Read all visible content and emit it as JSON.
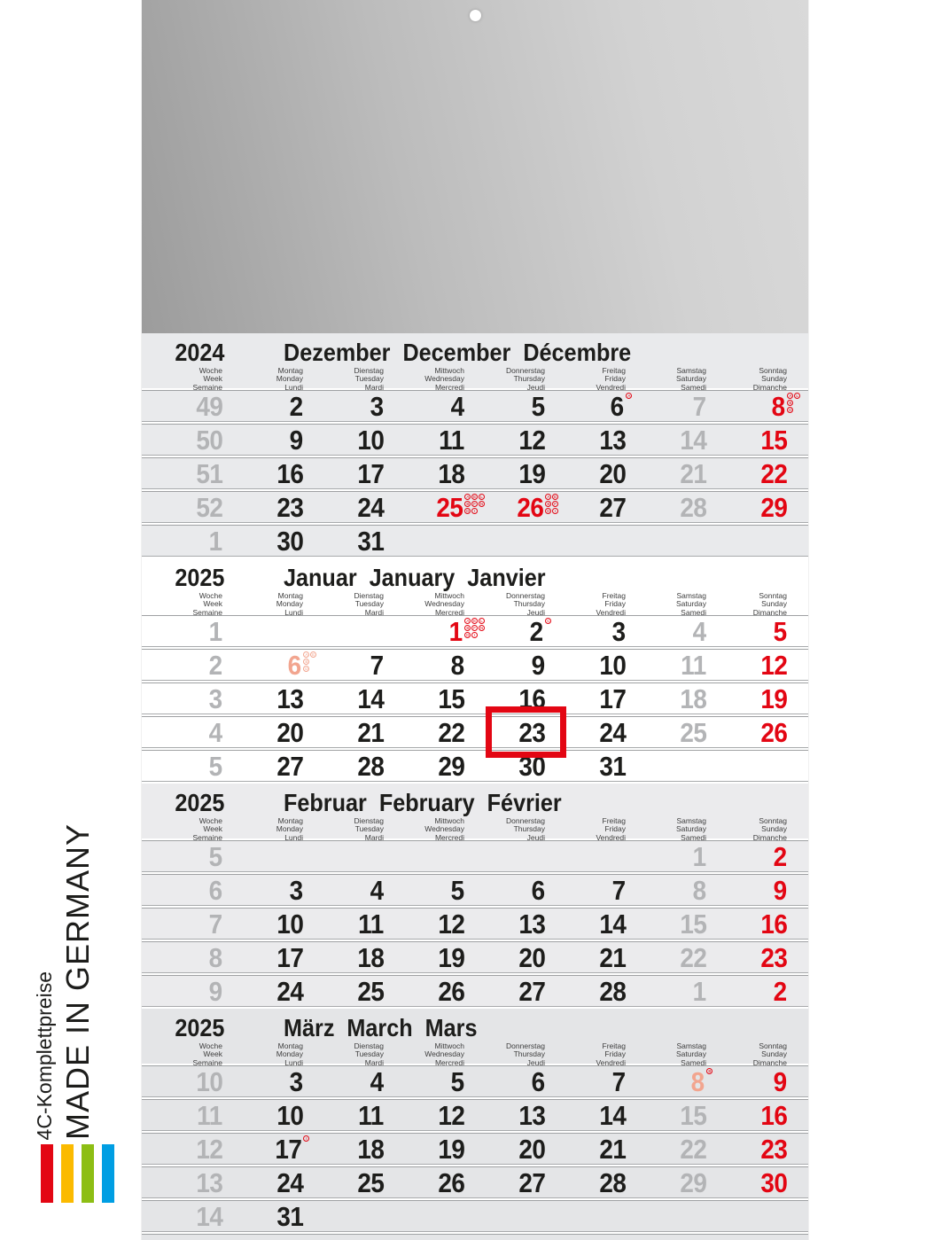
{
  "branding": {
    "tagline": "4C-Komplettpreise",
    "made_in": "MADE IN GERMANY",
    "bars": [
      "#e30613",
      "#fbba00",
      "#8dbe14",
      "#009ee3"
    ]
  },
  "colors": {
    "red": "#e30613",
    "salmon": "#f2a58f",
    "gray_day": "#b3b4b6",
    "black_day": "#1d1d1b"
  },
  "weekday_header": {
    "week": [
      "Woche",
      "Week",
      "Semaine"
    ],
    "days": [
      [
        "Montag",
        "Monday",
        "Lundi"
      ],
      [
        "Dienstag",
        "Tuesday",
        "Mardi"
      ],
      [
        "Mittwoch",
        "Wednesday",
        "Mercredi"
      ],
      [
        "Donnerstag",
        "Thursday",
        "Jeudi"
      ],
      [
        "Freitag",
        "Friday",
        "Vendredi"
      ],
      [
        "Samstag",
        "Saturday",
        "Samedi"
      ],
      [
        "Sonntag",
        "Sunday",
        "Dimanche"
      ]
    ]
  },
  "months": [
    {
      "year": "2024",
      "title": "Dezember  December  Décembre",
      "band": "#e9eaec",
      "weeks": [
        {
          "num": "49",
          "days": [
            {
              "n": "2",
              "c": "k"
            },
            {
              "n": "3",
              "c": "k"
            },
            {
              "n": "4",
              "c": "k"
            },
            {
              "n": "5",
              "c": "k"
            },
            {
              "n": "6",
              "c": "k",
              "m": [
                "A"
              ]
            },
            {
              "n": "7",
              "c": "g"
            },
            {
              "n": "8",
              "c": "r",
              "m": [
                "A",
                "B",
                "D",
                "L"
              ]
            }
          ]
        },
        {
          "num": "50",
          "days": [
            {
              "n": "9",
              "c": "k"
            },
            {
              "n": "10",
              "c": "k"
            },
            {
              "n": "11",
              "c": "k"
            },
            {
              "n": "12",
              "c": "k"
            },
            {
              "n": "13",
              "c": "k"
            },
            {
              "n": "14",
              "c": "g"
            },
            {
              "n": "15",
              "c": "r"
            }
          ]
        },
        {
          "num": "51",
          "days": [
            {
              "n": "16",
              "c": "k"
            },
            {
              "n": "17",
              "c": "k"
            },
            {
              "n": "18",
              "c": "k"
            },
            {
              "n": "19",
              "c": "k"
            },
            {
              "n": "20",
              "c": "k"
            },
            {
              "n": "21",
              "c": "g"
            },
            {
              "n": "22",
              "c": "r"
            }
          ]
        },
        {
          "num": "52",
          "days": [
            {
              "n": "23",
              "c": "k"
            },
            {
              "n": "24",
              "c": "k"
            },
            {
              "n": "25",
              "c": "r",
              "m": [
                "A",
                "B",
                "D",
                "E",
                "F",
                "I",
                "L",
                "N"
              ]
            },
            {
              "n": "26",
              "c": "r",
              "m": [
                "A",
                "B",
                "D",
                "E",
                "F",
                "I"
              ]
            },
            {
              "n": "27",
              "c": "k"
            },
            {
              "n": "28",
              "c": "g"
            },
            {
              "n": "29",
              "c": "r"
            }
          ]
        },
        {
          "num": "1",
          "days": [
            {
              "n": "30",
              "c": "k"
            },
            {
              "n": "31",
              "c": "k"
            },
            null,
            null,
            null,
            null,
            null
          ]
        }
      ]
    },
    {
      "year": "2025",
      "title": "Januar  January  Janvier",
      "band": "#ffffff",
      "weeks": [
        {
          "num": "1",
          "days": [
            null,
            null,
            {
              "n": "1",
              "c": "r",
              "m": [
                "A",
                "B",
                "D",
                "E",
                "F",
                "I",
                "L",
                "N"
              ]
            },
            {
              "n": "2",
              "c": "k",
              "m": [
                "C"
              ]
            },
            {
              "n": "3",
              "c": "k"
            },
            {
              "n": "4",
              "c": "g"
            },
            {
              "n": "5",
              "c": "r"
            }
          ]
        },
        {
          "num": "2",
          "days": [
            {
              "n": "6",
              "c": "s",
              "m": [
                "A",
                "B",
                "D",
                "E"
              ],
              "mc": "s"
            },
            {
              "n": "7",
              "c": "k"
            },
            {
              "n": "8",
              "c": "k"
            },
            {
              "n": "9",
              "c": "k"
            },
            {
              "n": "10",
              "c": "k"
            },
            {
              "n": "11",
              "c": "g"
            },
            {
              "n": "12",
              "c": "r"
            }
          ]
        },
        {
          "num": "3",
          "days": [
            {
              "n": "13",
              "c": "k"
            },
            {
              "n": "14",
              "c": "k"
            },
            {
              "n": "15",
              "c": "k"
            },
            {
              "n": "16",
              "c": "k"
            },
            {
              "n": "17",
              "c": "k"
            },
            {
              "n": "18",
              "c": "g"
            },
            {
              "n": "19",
              "c": "r"
            }
          ]
        },
        {
          "num": "4",
          "days": [
            {
              "n": "20",
              "c": "k"
            },
            {
              "n": "21",
              "c": "k"
            },
            {
              "n": "22",
              "c": "k"
            },
            {
              "n": "23",
              "c": "k",
              "sel": true
            },
            {
              "n": "24",
              "c": "k"
            },
            {
              "n": "25",
              "c": "g"
            },
            {
              "n": "26",
              "c": "r"
            }
          ]
        },
        {
          "num": "5",
          "days": [
            {
              "n": "27",
              "c": "k"
            },
            {
              "n": "28",
              "c": "k"
            },
            {
              "n": "29",
              "c": "k"
            },
            {
              "n": "30",
              "c": "k"
            },
            {
              "n": "31",
              "c": "k"
            },
            null,
            null
          ]
        }
      ]
    },
    {
      "year": "2025",
      "title": "Februar  February  Février",
      "band": "#ebebed",
      "weeks": [
        {
          "num": "5",
          "days": [
            null,
            null,
            null,
            null,
            null,
            {
              "n": "1",
              "c": "g"
            },
            {
              "n": "2",
              "c": "r"
            }
          ]
        },
        {
          "num": "6",
          "days": [
            {
              "n": "3",
              "c": "k"
            },
            {
              "n": "4",
              "c": "k"
            },
            {
              "n": "5",
              "c": "k"
            },
            {
              "n": "6",
              "c": "k"
            },
            {
              "n": "7",
              "c": "k"
            },
            {
              "n": "8",
              "c": "g"
            },
            {
              "n": "9",
              "c": "r"
            }
          ]
        },
        {
          "num": "7",
          "days": [
            {
              "n": "10",
              "c": "k"
            },
            {
              "n": "11",
              "c": "k"
            },
            {
              "n": "12",
              "c": "k"
            },
            {
              "n": "13",
              "c": "k"
            },
            {
              "n": "14",
              "c": "k"
            },
            {
              "n": "15",
              "c": "g"
            },
            {
              "n": "16",
              "c": "r"
            }
          ]
        },
        {
          "num": "8",
          "days": [
            {
              "n": "17",
              "c": "k"
            },
            {
              "n": "18",
              "c": "k"
            },
            {
              "n": "19",
              "c": "k"
            },
            {
              "n": "20",
              "c": "k"
            },
            {
              "n": "21",
              "c": "k"
            },
            {
              "n": "22",
              "c": "g"
            },
            {
              "n": "23",
              "c": "r"
            }
          ]
        },
        {
          "num": "9",
          "days": [
            {
              "n": "24",
              "c": "k"
            },
            {
              "n": "25",
              "c": "k"
            },
            {
              "n": "26",
              "c": "k"
            },
            {
              "n": "27",
              "c": "k"
            },
            {
              "n": "28",
              "c": "k"
            },
            {
              "n": "1",
              "c": "g"
            },
            {
              "n": "2",
              "c": "r"
            }
          ]
        }
      ]
    },
    {
      "year": "2025",
      "title": "März  March  Mars",
      "band": "#e4e5e7",
      "weeks": [
        {
          "num": "10",
          "days": [
            {
              "n": "3",
              "c": "k"
            },
            {
              "n": "4",
              "c": "k"
            },
            {
              "n": "5",
              "c": "k"
            },
            {
              "n": "6",
              "c": "k"
            },
            {
              "n": "7",
              "c": "k"
            },
            {
              "n": "8",
              "c": "s",
              "m": [
                "B"
              ]
            },
            {
              "n": "9",
              "c": "r"
            }
          ]
        },
        {
          "num": "11",
          "days": [
            {
              "n": "10",
              "c": "k"
            },
            {
              "n": "11",
              "c": "k"
            },
            {
              "n": "12",
              "c": "k"
            },
            {
              "n": "13",
              "c": "k"
            },
            {
              "n": "14",
              "c": "k"
            },
            {
              "n": "15",
              "c": "g"
            },
            {
              "n": "16",
              "c": "r"
            }
          ]
        },
        {
          "num": "12",
          "days": [
            {
              "n": "17",
              "c": "k",
              "m": [
                "I"
              ]
            },
            {
              "n": "18",
              "c": "k"
            },
            {
              "n": "19",
              "c": "k"
            },
            {
              "n": "20",
              "c": "k"
            },
            {
              "n": "21",
              "c": "k"
            },
            {
              "n": "22",
              "c": "g"
            },
            {
              "n": "23",
              "c": "r"
            }
          ]
        },
        {
          "num": "13",
          "days": [
            {
              "n": "24",
              "c": "k"
            },
            {
              "n": "25",
              "c": "k"
            },
            {
              "n": "26",
              "c": "k"
            },
            {
              "n": "27",
              "c": "k"
            },
            {
              "n": "28",
              "c": "k"
            },
            {
              "n": "29",
              "c": "g"
            },
            {
              "n": "30",
              "c": "r"
            }
          ]
        },
        {
          "num": "14",
          "days": [
            {
              "n": "31",
              "c": "k"
            },
            null,
            null,
            null,
            null,
            null,
            null
          ]
        }
      ]
    }
  ]
}
